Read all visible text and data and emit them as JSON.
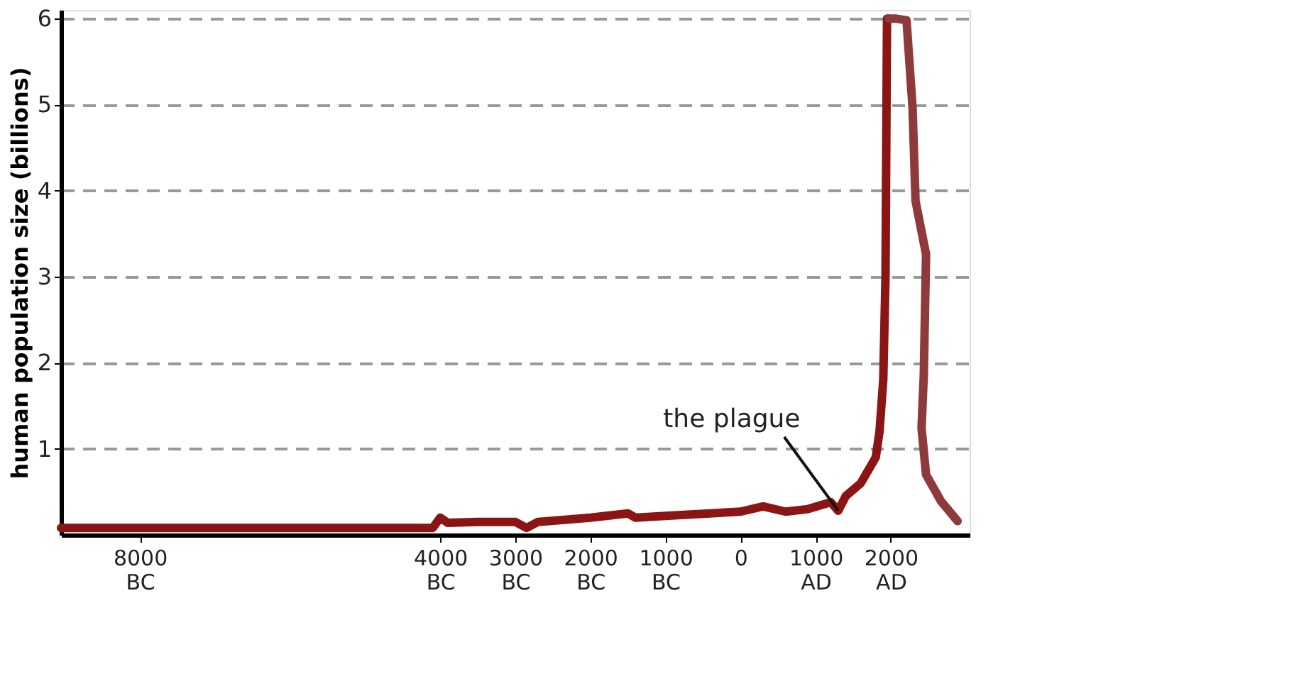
{
  "chart_data": {
    "type": "line",
    "ylabel": "human population size (billions)",
    "xlim": [
      -9050,
      3050
    ],
    "ylim": [
      0,
      6.1
    ],
    "xticks": [
      {
        "value": -8000,
        "label": "8000 BC"
      },
      {
        "value": -4000,
        "label": "4000 BC"
      },
      {
        "value": -3000,
        "label": "3000 BC"
      },
      {
        "value": -2000,
        "label": "2000 BC"
      },
      {
        "value": -1000,
        "label": "1000 BC"
      },
      0,
      {
        "value": 1000,
        "label": "1000 AD"
      },
      {
        "value": 2000,
        "label": "2000 AD"
      }
    ],
    "yticks": [
      1,
      2,
      3,
      4,
      5,
      6
    ],
    "grid": "y",
    "line_style": "solid",
    "marker": "none",
    "series": [
      {
        "color": "#8b1414",
        "x": [
          -9050,
          -4100,
          -4000,
          -3900,
          -3500,
          -3000,
          -2850,
          -2700,
          -2000,
          -1500,
          -1400,
          -1000,
          0,
          300,
          600,
          900,
          1200,
          1300,
          1400,
          1600,
          1800,
          1850,
          1900,
          1930,
          1950,
          1970
        ],
        "values": [
          0.08,
          0.08,
          0.2,
          0.14,
          0.15,
          0.15,
          0.08,
          0.15,
          0.2,
          0.25,
          0.2,
          0.22,
          0.27,
          0.33,
          0.27,
          0.3,
          0.38,
          0.28,
          0.45,
          0.6,
          0.9,
          1.2,
          1.8,
          3,
          6,
          6
        ]
      },
      {
        "color": "#8e3a3a",
        "x": [
          1970,
          2060,
          2210,
          2290,
          2330,
          2470,
          2440,
          2410,
          2470,
          2670,
          2890
        ],
        "values": [
          6,
          6,
          5.98,
          4.97,
          3.88,
          3.26,
          1.86,
          1.24,
          0.7,
          0.39,
          0.16
        ]
      }
    ],
    "annotations": [
      {
        "text": "the plague",
        "x": 1300,
        "y": 0.28
      }
    ]
  }
}
